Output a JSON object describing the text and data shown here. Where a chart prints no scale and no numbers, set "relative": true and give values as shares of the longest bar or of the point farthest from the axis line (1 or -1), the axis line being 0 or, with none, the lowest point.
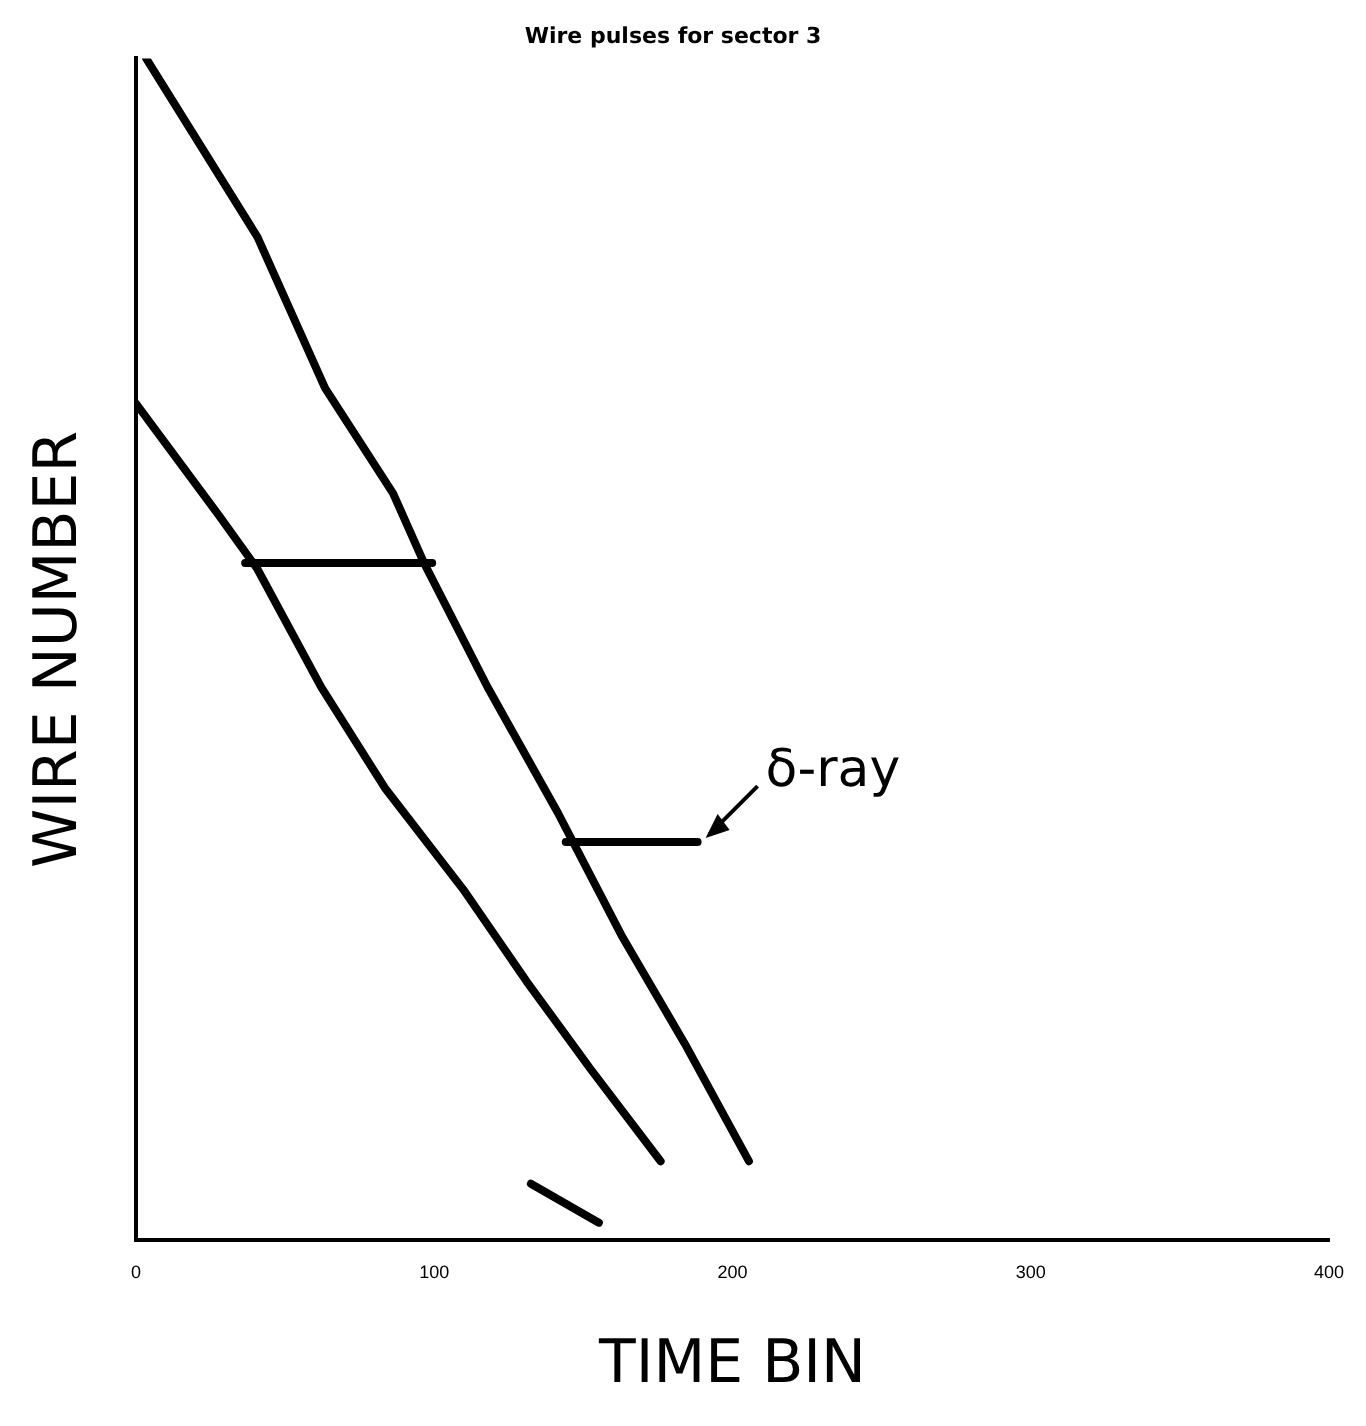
{
  "chart_data": {
    "type": "line",
    "title": "Wire pulses for sector 3",
    "xlabel": "TIME BIN",
    "ylabel": "WIRE NUMBER",
    "relative": true,
    "xlim": [
      0,
      400
    ],
    "xticks": [
      0,
      100,
      200,
      300,
      400
    ],
    "grid": false,
    "legend": false,
    "marker": "none",
    "line_style": "solid",
    "series": [
      {
        "color": "#000000",
        "x": [
          3.4,
          40.7,
          63.4,
          86.2,
          96.6,
          117.9,
          141.4,
          162.8,
          184.1,
          205.5
        ],
        "values": [
          1.0,
          0.849,
          0.721,
          0.632,
          0.573,
          0.468,
          0.362,
          0.258,
          0.166,
          0.067
        ]
      },
      {
        "color": "#000000",
        "x": [
          0,
          27.6,
          40.7,
          62.1,
          83.4,
          109.7,
          131,
          152.4,
          175.9
        ],
        "values": [
          0.708,
          0.614,
          0.568,
          0.468,
          0.383,
          0.297,
          0.219,
          0.145,
          0.067
        ]
      },
      {
        "color": "#000000",
        "x": [
          36.6,
          99.3
        ],
        "values": [
          0.573,
          0.573
        ]
      },
      {
        "color": "#000000",
        "x": [
          144.1,
          188.3
        ],
        "values": [
          0.337,
          0.337
        ]
      },
      {
        "color": "#000000",
        "x": [
          132.4,
          155.2
        ],
        "values": [
          0.048,
          0.015
        ]
      }
    ],
    "annotations": [
      {
        "text": "δ-ray",
        "x": 188.3,
        "y": 0.337
      }
    ]
  }
}
